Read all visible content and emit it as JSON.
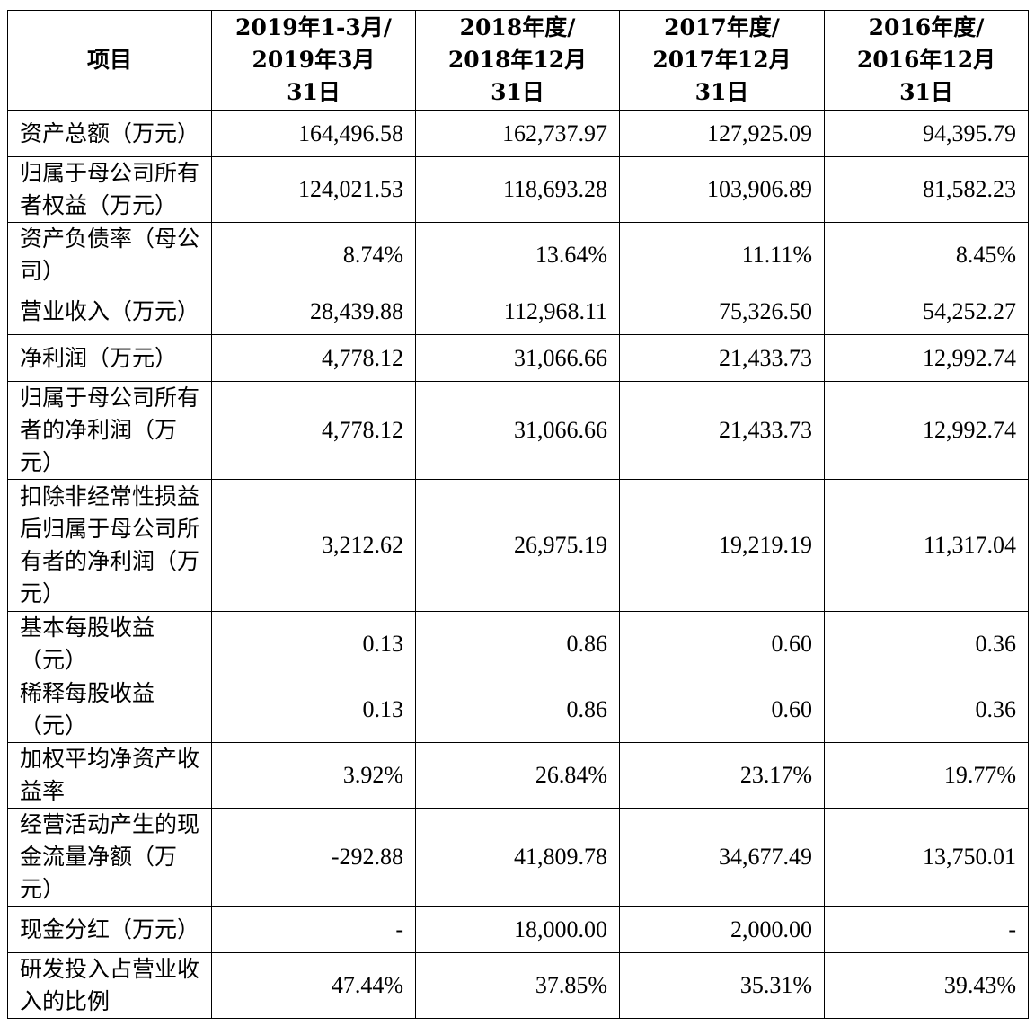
{
  "table": {
    "headers": [
      "项目",
      "2019年1-3月/\n2019年3月\n31日",
      "2018年度/\n2018年12月\n31日",
      "2017年度/\n2017年12月\n31日",
      "2016年度/\n2016年12月\n31日"
    ],
    "rows": [
      {
        "label": "资产总额（万元）",
        "values": [
          "164,496.58",
          "162,737.97",
          "127,925.09",
          "94,395.79"
        ]
      },
      {
        "label": "归属于母公司所有者权益（万元）",
        "values": [
          "124,021.53",
          "118,693.28",
          "103,906.89",
          "81,582.23"
        ]
      },
      {
        "label": "资产负债率（母公司）",
        "values": [
          "8.74%",
          "13.64%",
          "11.11%",
          "8.45%"
        ]
      },
      {
        "label": "营业收入（万元）",
        "values": [
          "28,439.88",
          "112,968.11",
          "75,326.50",
          "54,252.27"
        ]
      },
      {
        "label": "净利润（万元）",
        "values": [
          "4,778.12",
          "31,066.66",
          "21,433.73",
          "12,992.74"
        ]
      },
      {
        "label": "归属于母公司所有者的净利润（万元）",
        "values": [
          "4,778.12",
          "31,066.66",
          "21,433.73",
          "12,992.74"
        ]
      },
      {
        "label": "扣除非经常性损益后归属于母公司所有者的净利润（万元）",
        "values": [
          "3,212.62",
          "26,975.19",
          "19,219.19",
          "11,317.04"
        ]
      },
      {
        "label": "基本每股收益（元）",
        "values": [
          "0.13",
          "0.86",
          "0.60",
          "0.36"
        ]
      },
      {
        "label": "稀释每股收益（元）",
        "values": [
          "0.13",
          "0.86",
          "0.60",
          "0.36"
        ]
      },
      {
        "label": "加权平均净资产收益率",
        "values": [
          "3.92%",
          "26.84%",
          "23.17%",
          "19.77%"
        ]
      },
      {
        "label": "经营活动产生的现金流量净额（万元）",
        "values": [
          "-292.88",
          "41,809.78",
          "34,677.49",
          "13,750.01"
        ]
      },
      {
        "label": "现金分红（万元）",
        "values": [
          "-",
          "18,000.00",
          "2,000.00",
          "-"
        ]
      },
      {
        "label": "研发投入占营业收入的比例",
        "values": [
          "47.44%",
          "37.85%",
          "35.31%",
          "39.43%"
        ]
      }
    ]
  }
}
